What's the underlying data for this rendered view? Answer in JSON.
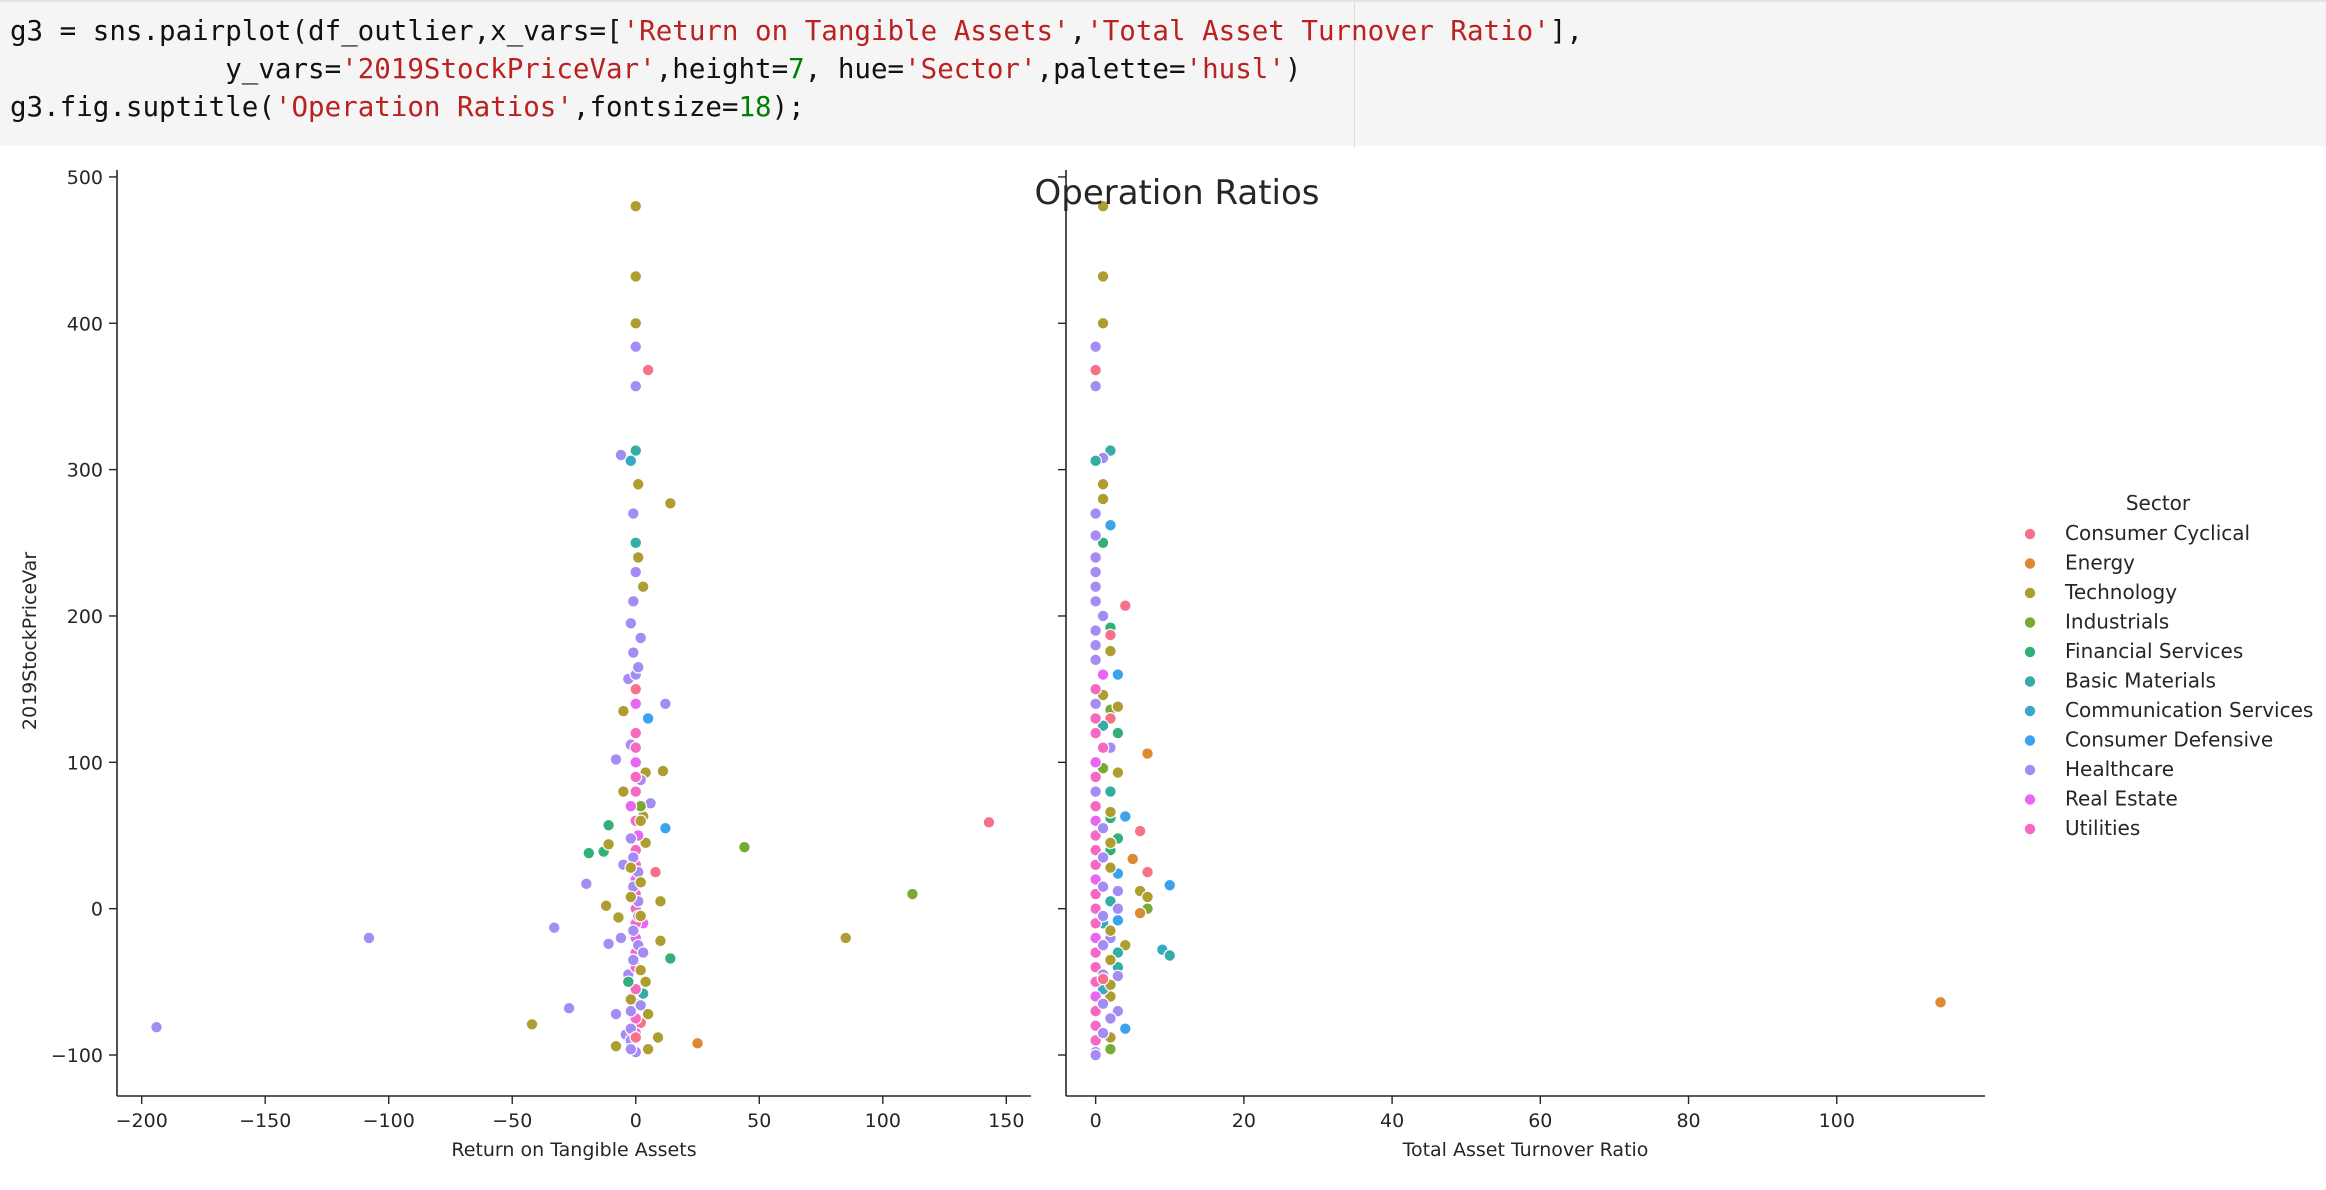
{
  "code_cell": {
    "lines": [
      [
        {
          "t": "g3 = sns.pairplot(df_outlier,x_vars=["
        },
        {
          "t": "'Return on Tangible Assets'",
          "k": "str"
        },
        {
          "t": ","
        },
        {
          "t": "'Total Asset Turnover Ratio'",
          "k": "str"
        },
        {
          "t": "],"
        }
      ],
      [
        {
          "t": "             y_vars="
        },
        {
          "t": "'2019StockPriceVar'",
          "k": "str"
        },
        {
          "t": ",height="
        },
        {
          "t": "7",
          "k": "num"
        },
        {
          "t": ", hue="
        },
        {
          "t": "'Sector'",
          "k": "str"
        },
        {
          "t": ",palette="
        },
        {
          "t": "'husl'",
          "k": "str"
        },
        {
          "t": ")"
        }
      ],
      [
        {
          "t": "g3.fig.suptitle("
        },
        {
          "t": "'Operation Ratios'",
          "k": "str"
        },
        {
          "t": ",fontsize="
        },
        {
          "t": "18",
          "k": "num"
        },
        {
          "t": ");"
        }
      ]
    ]
  },
  "chart_data": {
    "type": "scatter",
    "title": "Operation Ratios",
    "ylabel": "2019StockPriceVar",
    "ylim": [
      -128,
      502
    ],
    "yticks": [
      -100,
      0,
      100,
      200,
      300,
      400,
      500
    ],
    "legend": {
      "title": "Sector",
      "placement": "right"
    },
    "grid": false,
    "series": [
      {
        "name": "Consumer Cyclical",
        "color": "#f77189"
      },
      {
        "name": "Energy",
        "color": "#dc8932"
      },
      {
        "name": "Technology",
        "color": "#ae9d31"
      },
      {
        "name": "Industrials",
        "color": "#77ab31"
      },
      {
        "name": "Financial Services",
        "color": "#33b07a"
      },
      {
        "name": "Basic Materials",
        "color": "#36ada4"
      },
      {
        "name": "Communication Services",
        "color": "#38a9c5"
      },
      {
        "name": "Consumer Defensive",
        "color": "#3ba3ec"
      },
      {
        "name": "Healthcare",
        "color": "#a48cf4"
      },
      {
        "name": "Real Estate",
        "color": "#e866f4"
      },
      {
        "name": "Utilities",
        "color": "#f668c2"
      }
    ],
    "panels": [
      {
        "xlabel": "Return on Tangible Assets",
        "xlim": [
          -210,
          160
        ],
        "xticks": [
          -200,
          -150,
          -100,
          -50,
          0,
          50,
          100,
          150
        ],
        "points": [
          [
            0,
            480,
            2
          ],
          [
            0,
            432,
            2
          ],
          [
            0,
            400,
            2
          ],
          [
            0,
            384,
            8
          ],
          [
            0,
            357,
            8
          ],
          [
            5,
            368,
            0
          ],
          [
            0,
            313,
            5
          ],
          [
            -2,
            306,
            6
          ],
          [
            -6,
            310,
            8
          ],
          [
            14,
            277,
            2
          ],
          [
            0,
            250,
            5
          ],
          [
            0,
            230,
            8
          ],
          [
            -1,
            210,
            8
          ],
          [
            3,
            220,
            2
          ],
          [
            12,
            140,
            8
          ],
          [
            5,
            130,
            7
          ],
          [
            -5,
            135,
            2
          ],
          [
            -3,
            157,
            8
          ],
          [
            0,
            150,
            0
          ],
          [
            0,
            160,
            8
          ],
          [
            -8,
            102,
            8
          ],
          [
            11,
            94,
            2
          ],
          [
            4,
            93,
            2
          ],
          [
            -5,
            80,
            2
          ],
          [
            6,
            72,
            8
          ],
          [
            -11,
            57,
            4
          ],
          [
            12,
            55,
            7
          ],
          [
            3,
            63,
            2
          ],
          [
            2,
            70,
            3
          ],
          [
            -2,
            70,
            9
          ],
          [
            44,
            42,
            3
          ],
          [
            143,
            59,
            0
          ],
          [
            -19,
            38,
            4
          ],
          [
            -13,
            39,
            4
          ],
          [
            -11,
            44,
            2
          ],
          [
            -20,
            17,
            8
          ],
          [
            8,
            25,
            0
          ],
          [
            -5,
            30,
            8
          ],
          [
            4,
            45,
            2
          ],
          [
            1,
            50,
            9
          ],
          [
            -12,
            2,
            2
          ],
          [
            10,
            5,
            2
          ],
          [
            112,
            10,
            3
          ],
          [
            85,
            -20,
            2
          ],
          [
            -108,
            -20,
            8
          ],
          [
            -33,
            -13,
            8
          ],
          [
            -11,
            -24,
            8
          ],
          [
            -6,
            -20,
            8
          ],
          [
            10,
            -22,
            2
          ],
          [
            14,
            -34,
            4
          ],
          [
            -7,
            -6,
            2
          ],
          [
            3,
            -10,
            9
          ],
          [
            -27,
            -68,
            8
          ],
          [
            -42,
            -79,
            2
          ],
          [
            -194,
            -81,
            8
          ],
          [
            25,
            -92,
            1
          ],
          [
            9,
            -88,
            2
          ],
          [
            5,
            -72,
            2
          ],
          [
            3,
            -58,
            5
          ],
          [
            -8,
            -72,
            8
          ],
          [
            -4,
            -86,
            8
          ],
          [
            0,
            -98,
            8
          ],
          [
            5,
            -96,
            2
          ],
          [
            -8,
            -94,
            2
          ],
          [
            -2,
            -90,
            8
          ],
          [
            2,
            -78,
            0
          ],
          [
            0,
            -85,
            9
          ],
          [
            -2,
            -96,
            8
          ],
          [
            4,
            -50,
            2
          ],
          [
            -3,
            -45,
            8
          ],
          [
            0,
            -40,
            10
          ],
          [
            0,
            -30,
            10
          ],
          [
            0,
            -20,
            9
          ],
          [
            0,
            -10,
            10
          ],
          [
            0,
            0,
            10
          ],
          [
            0,
            10,
            10
          ],
          [
            0,
            20,
            9
          ],
          [
            0,
            30,
            10
          ],
          [
            0,
            40,
            10
          ],
          [
            0,
            60,
            10
          ],
          [
            0,
            80,
            10
          ],
          [
            0,
            100,
            9
          ],
          [
            0,
            120,
            10
          ],
          [
            0,
            -55,
            10
          ],
          [
            0,
            -65,
            10
          ],
          [
            0,
            -75,
            10
          ],
          [
            1,
            5,
            8
          ],
          [
            -1,
            15,
            8
          ],
          [
            1,
            25,
            8
          ],
          [
            -1,
            35,
            8
          ],
          [
            1,
            -5,
            8
          ],
          [
            -1,
            -15,
            8
          ],
          [
            1,
            -25,
            8
          ],
          [
            -1,
            -35,
            8
          ],
          [
            2,
            -42,
            2
          ],
          [
            -2,
            -62,
            2
          ],
          [
            2,
            -66,
            8
          ],
          [
            -2,
            -82,
            8
          ],
          [
            2,
            -5,
            2
          ],
          [
            -2,
            8,
            2
          ],
          [
            2,
            18,
            2
          ],
          [
            -2,
            28,
            2
          ],
          [
            2,
            88,
            8
          ],
          [
            -2,
            112,
            8
          ],
          [
            2,
            185,
            8
          ],
          [
            -2,
            195,
            8
          ],
          [
            1,
            240,
            2
          ],
          [
            -1,
            270,
            8
          ],
          [
            1,
            290,
            2
          ],
          [
            -1,
            175,
            8
          ],
          [
            1,
            165,
            8
          ],
          [
            0,
            140,
            9
          ],
          [
            0,
            110,
            10
          ],
          [
            0,
            90,
            10
          ],
          [
            2,
            60,
            2
          ],
          [
            -2,
            48,
            8
          ],
          [
            -3,
            -50,
            4
          ],
          [
            3,
            -30,
            8
          ],
          [
            0,
            -88,
            0
          ],
          [
            -2,
            -70,
            8
          ]
        ]
      },
      {
        "xlabel": "Total Asset Turnover Ratio",
        "xlim": [
          -4,
          120
        ],
        "xticks": [
          0,
          20,
          40,
          60,
          80,
          100
        ],
        "points": [
          [
            1,
            480,
            2
          ],
          [
            1,
            432,
            2
          ],
          [
            1,
            400,
            2
          ],
          [
            0,
            384,
            8
          ],
          [
            0,
            368,
            0
          ],
          [
            0,
            357,
            8
          ],
          [
            2,
            313,
            5
          ],
          [
            1,
            308,
            8
          ],
          [
            0,
            306,
            5
          ],
          [
            1,
            280,
            2
          ],
          [
            2,
            262,
            7
          ],
          [
            1,
            250,
            4
          ],
          [
            0,
            255,
            8
          ],
          [
            4,
            207,
            0
          ],
          [
            2,
            192,
            4
          ],
          [
            2,
            187,
            0
          ],
          [
            3,
            160,
            7
          ],
          [
            2,
            136,
            3
          ],
          [
            3,
            138,
            2
          ],
          [
            2,
            130,
            0
          ],
          [
            3,
            120,
            4
          ],
          [
            1,
            125,
            5
          ],
          [
            7,
            106,
            1
          ],
          [
            3,
            93,
            2
          ],
          [
            4,
            63,
            7
          ],
          [
            2,
            62,
            4
          ],
          [
            6,
            53,
            0
          ],
          [
            3,
            48,
            4
          ],
          [
            7,
            25,
            0
          ],
          [
            5,
            34,
            1
          ],
          [
            10,
            16,
            7
          ],
          [
            6,
            12,
            2
          ],
          [
            7,
            8,
            2
          ],
          [
            7,
            0,
            3
          ],
          [
            6,
            -3,
            1
          ],
          [
            4,
            -25,
            2
          ],
          [
            3,
            -30,
            5
          ],
          [
            9,
            -28,
            6
          ],
          [
            10,
            -32,
            5
          ],
          [
            3,
            -40,
            5
          ],
          [
            3,
            -46,
            8
          ],
          [
            2,
            -60,
            2
          ],
          [
            3,
            -70,
            8
          ],
          [
            4,
            -82,
            7
          ],
          [
            2,
            -88,
            2
          ],
          [
            2,
            -96,
            3
          ],
          [
            0,
            -98,
            8
          ],
          [
            114,
            -64,
            1
          ],
          [
            3,
            24,
            7
          ],
          [
            2,
            40,
            4
          ],
          [
            1,
            -10,
            6
          ],
          [
            2,
            -20,
            8
          ],
          [
            1,
            -55,
            6
          ],
          [
            2,
            5,
            5
          ],
          [
            3,
            12,
            8
          ],
          [
            2,
            80,
            5
          ],
          [
            1,
            96,
            3
          ],
          [
            2,
            110,
            8
          ],
          [
            1,
            146,
            2
          ],
          [
            2,
            176,
            2
          ],
          [
            1,
            200,
            8
          ],
          [
            0,
            270,
            8
          ],
          [
            1,
            290,
            2
          ],
          [
            0,
            240,
            8
          ],
          [
            0,
            230,
            8
          ],
          [
            0,
            220,
            8
          ],
          [
            0,
            210,
            8
          ],
          [
            0,
            190,
            8
          ],
          [
            0,
            180,
            8
          ],
          [
            0,
            170,
            8
          ],
          [
            0,
            150,
            10
          ],
          [
            0,
            140,
            8
          ],
          [
            0,
            130,
            10
          ],
          [
            0,
            120,
            10
          ],
          [
            0,
            100,
            9
          ],
          [
            0,
            90,
            10
          ],
          [
            0,
            80,
            8
          ],
          [
            0,
            70,
            10
          ],
          [
            0,
            60,
            9
          ],
          [
            0,
            50,
            10
          ],
          [
            0,
            40,
            10
          ],
          [
            0,
            30,
            10
          ],
          [
            0,
            20,
            9
          ],
          [
            0,
            10,
            10
          ],
          [
            0,
            0,
            10
          ],
          [
            0,
            -10,
            10
          ],
          [
            0,
            -20,
            9
          ],
          [
            0,
            -30,
            10
          ],
          [
            0,
            -40,
            10
          ],
          [
            0,
            -50,
            10
          ],
          [
            0,
            -60,
            9
          ],
          [
            0,
            -70,
            10
          ],
          [
            0,
            -80,
            10
          ],
          [
            0,
            -90,
            10
          ],
          [
            1,
            -5,
            8
          ],
          [
            1,
            15,
            8
          ],
          [
            1,
            35,
            8
          ],
          [
            1,
            55,
            8
          ],
          [
            1,
            -25,
            8
          ],
          [
            1,
            -45,
            8
          ],
          [
            1,
            -65,
            8
          ],
          [
            1,
            -85,
            8
          ],
          [
            2,
            -15,
            2
          ],
          [
            2,
            28,
            2
          ],
          [
            2,
            45,
            2
          ],
          [
            2,
            66,
            2
          ],
          [
            2,
            -35,
            2
          ],
          [
            2,
            -52,
            2
          ],
          [
            3,
            -8,
            7
          ],
          [
            3,
            0,
            8
          ],
          [
            1,
            -48,
            0
          ],
          [
            2,
            -75,
            8
          ],
          [
            1,
            110,
            10
          ],
          [
            1,
            160,
            9
          ],
          [
            0,
            -100,
            8
          ]
        ]
      }
    ]
  }
}
